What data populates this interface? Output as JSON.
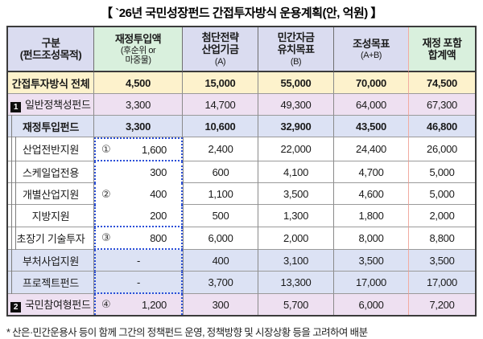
{
  "title": "【 `26년 국민성장펀드 간접투자방식 운용계획(안, 억원) 】",
  "footnote": "* 산은·민간운용사 등이 함께 그간의 정책펀드 운영, 정책방향 및 시장상황 등을 고려하여 배분",
  "colors": {
    "header_lavender": "#dadcf0",
    "header_green": "#d9f0dd",
    "row_yellow": "#fdf2cc",
    "row_pink": "#eee0f1",
    "row_periwinkle": "#dce2f4",
    "dotted_box_blue": "#2b4fd7",
    "salmon_divider": "#f2aba1",
    "badge_black": "#0d0d0d"
  },
  "table": {
    "headers": [
      {
        "main": "구분\n(펀드조성목적)",
        "sub": ""
      },
      {
        "main": "재정투입액",
        "sub": "(후순위 or\n마중물)"
      },
      {
        "main": "첨단전략\n산업기금",
        "sub": "(A)"
      },
      {
        "main": "민간자금\n유치목표",
        "sub": "(B)"
      },
      {
        "main": "조성목표",
        "sub": "(A+B)"
      },
      {
        "main": "재정 포함\n합계액",
        "sub": ""
      }
    ],
    "rows": [
      {
        "label": "간접투자방식 전체",
        "badge": "",
        "marker": "",
        "values": [
          "4,500",
          "15,000",
          "55,000",
          "70,000",
          "74,500"
        ]
      },
      {
        "label": "일반정책성펀드",
        "badge": "1",
        "marker": "",
        "values": [
          "3,300",
          "14,700",
          "49,300",
          "64,000",
          "67,300"
        ]
      },
      {
        "label": "재정투입펀드",
        "badge": "",
        "marker": "",
        "values": [
          "3,300",
          "10,600",
          "32,900",
          "43,500",
          "46,800"
        ]
      },
      {
        "label": "산업전반지원",
        "badge": "",
        "marker": "①",
        "values": [
          "1,600",
          "2,400",
          "22,000",
          "24,400",
          "26,000"
        ]
      },
      {
        "label": "스케일업전용",
        "badge": "",
        "marker": "",
        "values": [
          "300",
          "600",
          "4,100",
          "4,700",
          "5,000"
        ]
      },
      {
        "label": "개별산업지원",
        "badge": "",
        "marker": "②",
        "values": [
          "400",
          "1,100",
          "3,500",
          "4,600",
          "5,000"
        ]
      },
      {
        "label": "지방지원",
        "badge": "",
        "marker": "",
        "values": [
          "200",
          "500",
          "1,300",
          "1,800",
          "2,000"
        ]
      },
      {
        "label": "초장기 기술투자",
        "badge": "",
        "marker": "③",
        "values": [
          "800",
          "6,000",
          "2,000",
          "8,000",
          "8,800"
        ]
      },
      {
        "label": "부처사업지원",
        "badge": "",
        "marker": "",
        "values": [
          "-",
          "400",
          "3,100",
          "3,500",
          "3,500"
        ]
      },
      {
        "label": "프로젝트펀드",
        "badge": "",
        "marker": "",
        "values": [
          "-",
          "3,700",
          "13,300",
          "17,000",
          "17,000"
        ]
      },
      {
        "label": "국민참여형펀드",
        "badge": "2",
        "marker": "④",
        "values": [
          "1,200",
          "300",
          "5,700",
          "6,000",
          "7,200"
        ]
      }
    ]
  }
}
